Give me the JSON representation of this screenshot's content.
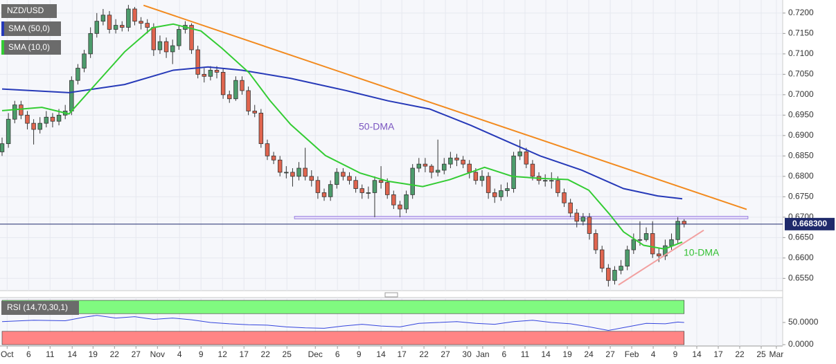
{
  "chart_data": [
    {
      "type": "candlestick",
      "title": "NZD/USD",
      "open": [
        0.686,
        0.688,
        0.694,
        0.6975,
        0.695,
        0.693,
        0.6915,
        0.693,
        0.6945,
        0.6935,
        0.695,
        0.696,
        0.7035,
        0.7065,
        0.71,
        0.715,
        0.718,
        0.7195,
        0.716,
        0.717,
        0.7165,
        0.721,
        0.718,
        0.7175,
        0.7165,
        0.711,
        0.713,
        0.7105,
        0.712,
        0.716,
        0.717,
        0.711,
        0.705,
        0.7045,
        0.706,
        0.7055,
        0.7,
        0.699,
        0.7035,
        0.701,
        0.696,
        0.6955,
        0.688,
        0.685,
        0.684,
        0.681,
        0.681,
        0.68,
        0.682,
        0.68,
        0.679,
        0.676,
        0.675,
        0.678,
        0.681,
        0.68,
        0.679,
        0.677,
        0.676,
        0.676,
        0.679,
        0.6785,
        0.6755,
        0.673,
        0.672,
        0.6755,
        0.682,
        0.683,
        0.6825,
        0.681,
        0.6815,
        0.683,
        0.6845,
        0.684,
        0.683,
        0.681,
        0.679,
        0.68,
        0.676,
        0.675,
        0.6765,
        0.677,
        0.685,
        0.686,
        0.683,
        0.68,
        0.679,
        0.679,
        0.679,
        0.676,
        0.6735,
        0.671,
        0.669,
        0.67,
        0.666,
        0.662,
        0.6575,
        0.6545,
        0.657,
        0.658,
        0.662,
        0.6645,
        0.6645,
        0.666,
        0.661,
        0.6605,
        0.663,
        0.6645,
        0.669
      ],
      "high": [
        0.6895,
        0.6955,
        0.6985,
        0.6985,
        0.696,
        0.694,
        0.6945,
        0.696,
        0.6955,
        0.6965,
        0.6975,
        0.7045,
        0.7075,
        0.711,
        0.7165,
        0.72,
        0.721,
        0.7205,
        0.7185,
        0.718,
        0.722,
        0.7215,
        0.719,
        0.7185,
        0.7175,
        0.7145,
        0.714,
        0.7135,
        0.717,
        0.718,
        0.7175,
        0.712,
        0.7065,
        0.707,
        0.707,
        0.7065,
        0.701,
        0.7045,
        0.7045,
        0.702,
        0.6975,
        0.6965,
        0.689,
        0.686,
        0.685,
        0.6825,
        0.682,
        0.6835,
        0.687,
        0.6815,
        0.68,
        0.677,
        0.679,
        0.682,
        0.682,
        0.681,
        0.68,
        0.678,
        0.6775,
        0.68,
        0.6825,
        0.6795,
        0.6765,
        0.674,
        0.6765,
        0.683,
        0.6845,
        0.6845,
        0.683,
        0.689,
        0.6845,
        0.686,
        0.6855,
        0.685,
        0.684,
        0.682,
        0.6815,
        0.681,
        0.677,
        0.678,
        0.6785,
        0.686,
        0.689,
        0.687,
        0.684,
        0.681,
        0.6805,
        0.681,
        0.68,
        0.677,
        0.6745,
        0.672,
        0.671,
        0.671,
        0.667,
        0.663,
        0.6585,
        0.658,
        0.6595,
        0.663,
        0.666,
        0.669,
        0.6675,
        0.669,
        0.6625,
        0.6645,
        0.666,
        0.67,
        0.6695
      ],
      "low": [
        0.685,
        0.687,
        0.693,
        0.694,
        0.6915,
        0.6878,
        0.6905,
        0.692,
        0.692,
        0.6925,
        0.694,
        0.695,
        0.7025,
        0.7055,
        0.709,
        0.714,
        0.717,
        0.715,
        0.715,
        0.7155,
        0.7155,
        0.717,
        0.716,
        0.715,
        0.7095,
        0.71,
        0.709,
        0.7075,
        0.711,
        0.715,
        0.71,
        0.704,
        0.703,
        0.7035,
        0.704,
        0.699,
        0.698,
        0.6985,
        0.7,
        0.695,
        0.6945,
        0.687,
        0.684,
        0.683,
        0.68,
        0.6795,
        0.6775,
        0.679,
        0.679,
        0.6775,
        0.6745,
        0.674,
        0.674,
        0.677,
        0.679,
        0.678,
        0.676,
        0.6745,
        0.6745,
        0.67,
        0.677,
        0.6745,
        0.672,
        0.67,
        0.671,
        0.6745,
        0.681,
        0.681,
        0.6795,
        0.68,
        0.6805,
        0.682,
        0.6825,
        0.682,
        0.6795,
        0.678,
        0.6775,
        0.6745,
        0.6735,
        0.674,
        0.675,
        0.676,
        0.684,
        0.682,
        0.679,
        0.678,
        0.6775,
        0.677,
        0.675,
        0.6725,
        0.67,
        0.6675,
        0.668,
        0.6645,
        0.661,
        0.6565,
        0.653,
        0.6535,
        0.656,
        0.657,
        0.661,
        0.663,
        0.664,
        0.66,
        0.659,
        0.6595,
        0.662,
        0.6635,
        0.6675
      ],
      "close": [
        0.688,
        0.694,
        0.6975,
        0.695,
        0.693,
        0.6915,
        0.693,
        0.6945,
        0.6935,
        0.695,
        0.696,
        0.7035,
        0.7065,
        0.71,
        0.715,
        0.718,
        0.7195,
        0.716,
        0.717,
        0.7165,
        0.721,
        0.718,
        0.7175,
        0.7165,
        0.711,
        0.713,
        0.7105,
        0.712,
        0.716,
        0.717,
        0.711,
        0.705,
        0.7045,
        0.706,
        0.7055,
        0.7,
        0.699,
        0.7035,
        0.701,
        0.696,
        0.6955,
        0.688,
        0.685,
        0.684,
        0.681,
        0.681,
        0.68,
        0.682,
        0.68,
        0.679,
        0.676,
        0.675,
        0.678,
        0.681,
        0.68,
        0.679,
        0.677,
        0.676,
        0.676,
        0.679,
        0.6785,
        0.6755,
        0.673,
        0.672,
        0.6755,
        0.682,
        0.683,
        0.6825,
        0.681,
        0.6815,
        0.683,
        0.6845,
        0.684,
        0.683,
        0.681,
        0.679,
        0.68,
        0.676,
        0.675,
        0.6765,
        0.677,
        0.685,
        0.686,
        0.683,
        0.68,
        0.679,
        0.679,
        0.679,
        0.676,
        0.6735,
        0.671,
        0.669,
        0.67,
        0.666,
        0.662,
        0.6575,
        0.6545,
        0.657,
        0.658,
        0.662,
        0.6645,
        0.6645,
        0.666,
        0.661,
        0.6605,
        0.663,
        0.6645,
        0.669,
        0.6683
      ],
      "up_color": "#4d9c6c",
      "down_color": "#e0654f",
      "xlim": [
        -0.33,
        123.6
      ],
      "xticks": [
        {
          "value": 0.8,
          "label": "Oct"
        },
        {
          "value": 4.2,
          "label": "6"
        },
        {
          "value": 7.6,
          "label": "11"
        },
        {
          "value": 11.1,
          "label": "14"
        },
        {
          "value": 14.4,
          "label": "19"
        },
        {
          "value": 17.8,
          "label": "22"
        },
        {
          "value": 21.2,
          "label": "27"
        },
        {
          "value": 24.6,
          "label": "Nov"
        },
        {
          "value": 28.1,
          "label": "4"
        },
        {
          "value": 31.5,
          "label": "9"
        },
        {
          "value": 34.9,
          "label": "12"
        },
        {
          "value": 38.3,
          "label": "17"
        },
        {
          "value": 41.7,
          "label": "22"
        },
        {
          "value": 45.1,
          "label": "25"
        },
        {
          "value": 49.6,
          "label": "Dec"
        },
        {
          "value": 53.1,
          "label": "6"
        },
        {
          "value": 56.5,
          "label": "9"
        },
        {
          "value": 60,
          "label": "14"
        },
        {
          "value": 63.3,
          "label": "17"
        },
        {
          "value": 66.8,
          "label": "22"
        },
        {
          "value": 70.2,
          "label": "27"
        },
        {
          "value": 73.6,
          "label": "30"
        },
        {
          "value": 76.1,
          "label": "Jan"
        },
        {
          "value": 79.5,
          "label": "6"
        },
        {
          "value": 82.8,
          "label": "11"
        },
        {
          "value": 86.1,
          "label": "14"
        },
        {
          "value": 89.5,
          "label": "19"
        },
        {
          "value": 92.9,
          "label": "24"
        },
        {
          "value": 96.3,
          "label": "27"
        },
        {
          "value": 99.7,
          "label": "Feb"
        },
        {
          "value": 103.1,
          "label": "4"
        },
        {
          "value": 106.6,
          "label": "9"
        },
        {
          "value": 110,
          "label": "14"
        },
        {
          "value": 113.4,
          "label": "17"
        },
        {
          "value": 116.8,
          "label": "22"
        },
        {
          "value": 120.2,
          "label": "25"
        },
        {
          "value": 122.6,
          "label": "Mar"
        }
      ],
      "ylim": [
        0.652,
        0.7232
      ],
      "yticks": [
        {
          "value": 0.72,
          "label": "0.7200"
        },
        {
          "value": 0.715,
          "label": "0.7150"
        },
        {
          "value": 0.71,
          "label": "0.7100"
        },
        {
          "value": 0.705,
          "label": "0.7050"
        },
        {
          "value": 0.7,
          "label": "0.7000"
        },
        {
          "value": 0.695,
          "label": "0.6950"
        },
        {
          "value": 0.69,
          "label": "0.6900"
        },
        {
          "value": 0.685,
          "label": "0.6850"
        },
        {
          "value": 0.68,
          "label": "0.6800"
        },
        {
          "value": 0.675,
          "label": "0.6750"
        },
        {
          "value": 0.67,
          "label": "0.6700"
        },
        {
          "value": 0.665,
          "label": "0.6650"
        },
        {
          "value": 0.66,
          "label": "0.6600"
        },
        {
          "value": 0.655,
          "label": "0.6550"
        }
      ],
      "grid": true,
      "series": [
        {
          "name": "SMA (50,0)",
          "color": "#2639b8",
          "x": [
            0,
            10.6,
            19.4,
            27.1,
            32.6,
            38.0,
            45.7,
            54.5,
            61.1,
            67.7,
            74.2,
            78.6,
            85.2,
            91.8,
            98.4,
            103.8,
            107.7
          ],
          "values": [
            0.7014,
            0.7005,
            0.7025,
            0.706,
            0.7068,
            0.706,
            0.704,
            0.701,
            0.6985,
            0.6965,
            0.6925,
            0.6895,
            0.685,
            0.6815,
            0.677,
            0.6752,
            0.6745
          ]
        },
        {
          "name": "SMA (10,0)",
          "color": "#33cc33",
          "x": [
            0,
            6.3,
            10.6,
            15,
            19.4,
            23.8,
            27.1,
            31.5,
            34.8,
            39.1,
            42.4,
            45.7,
            51.2,
            56.7,
            61.1,
            66.6,
            70.9,
            76.4,
            80.8,
            85.2,
            89.6,
            92.9,
            96.2,
            98.4,
            101.6,
            104.9,
            107.7
          ],
          "values": [
            0.6961,
            0.6969,
            0.6953,
            0.7029,
            0.7105,
            0.7164,
            0.7173,
            0.7156,
            0.7114,
            0.7054,
            0.6986,
            0.6927,
            0.6851,
            0.6808,
            0.6788,
            0.6775,
            0.6792,
            0.6822,
            0.68,
            0.6795,
            0.6792,
            0.6766,
            0.6707,
            0.6664,
            0.6631,
            0.6622,
            0.6639
          ]
        }
      ],
      "lines": [
        {
          "color": "#f28a1e",
          "x": [
            22.4,
            117.9
          ],
          "values": [
            0.7219,
            0.6719
          ]
        },
        {
          "color": "#f2a0a0",
          "x": [
            97.6,
            111.1
          ],
          "values": [
            0.6534,
            0.6668
          ]
        }
      ],
      "band": {
        "color": "#9a80e0",
        "x": [
          46.3,
          118.1
        ],
        "values": [
          0.6702,
          0.6696
        ]
      },
      "last_price": {
        "value": 0.6683,
        "label": "0.668300"
      },
      "annotations": [
        "50-DMA",
        "10-DMA"
      ]
    },
    {
      "type": "line",
      "title": "RSI (14,70,30,1)",
      "color": "#3344dd",
      "xlim": [
        -0.33,
        123.6
      ],
      "x": [
        0,
        5,
        10,
        13,
        15,
        18,
        21,
        24,
        27,
        30,
        33,
        36,
        39,
        42,
        45,
        48,
        51,
        54,
        57,
        60,
        63,
        66,
        69,
        72,
        75,
        78,
        81,
        84,
        87,
        90,
        93,
        96,
        99,
        102,
        105,
        107,
        108
      ],
      "values": [
        52,
        55,
        54,
        62,
        66,
        60,
        63,
        57,
        60,
        56,
        50,
        47,
        45,
        44,
        40,
        38,
        37,
        42,
        46,
        42,
        40,
        48,
        50,
        52,
        48,
        46,
        52,
        55,
        50,
        47,
        40,
        32,
        40,
        48,
        47,
        51,
        50
      ],
      "ylim": [
        -3.1,
        106.25
      ],
      "yticks": [
        {
          "value": 50,
          "label": "50.0000"
        },
        {
          "value": 0,
          "label": "0.0000"
        }
      ],
      "overbought": [
        70,
        100
      ],
      "overbought_color": "#80fa80",
      "oversold": [
        0,
        30
      ],
      "oversold_color": "#ff8585"
    }
  ]
}
